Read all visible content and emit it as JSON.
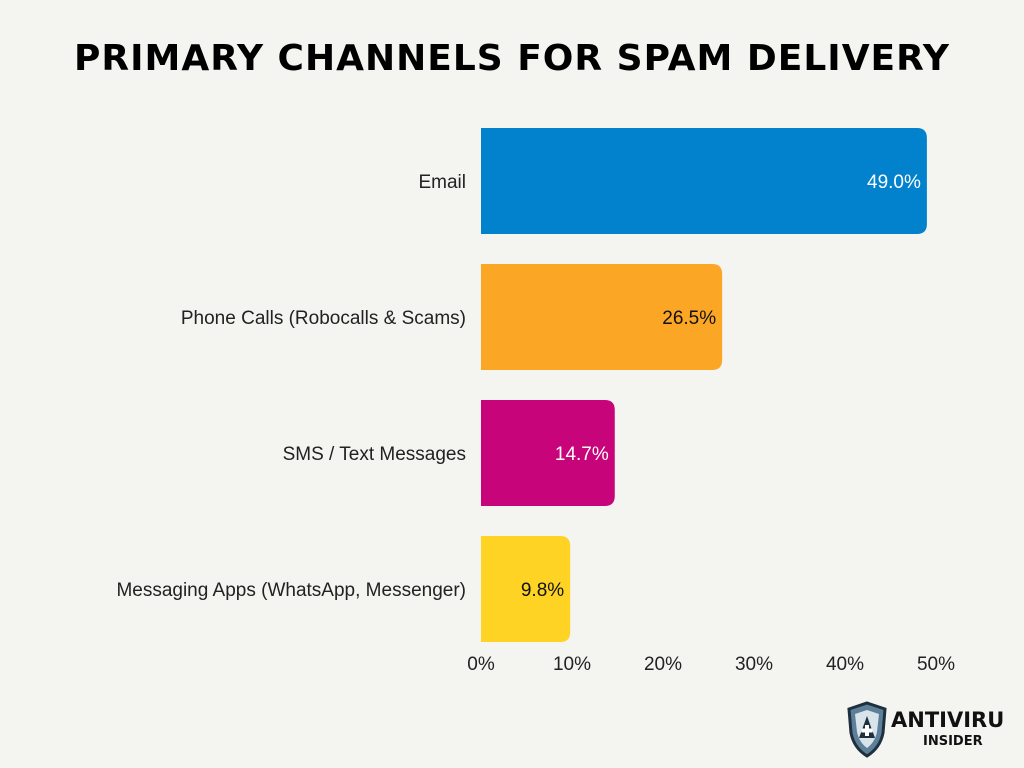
{
  "chart_data": {
    "type": "bar",
    "orientation": "horizontal",
    "title": "PRIMARY CHANNELS FOR SPAM DELIVERY",
    "categories": [
      "Email",
      "Phone Calls (Robocalls & Scams)",
      "SMS / Text Messages",
      "Messaging Apps (WhatsApp, Messenger)"
    ],
    "values": [
      49.0,
      26.5,
      14.7,
      9.8
    ],
    "value_labels": [
      "49.0%",
      "26.5%",
      "14.7%",
      "9.8%"
    ],
    "colors": [
      "#0282cc",
      "#fca626",
      "#c8047a",
      "#fed324"
    ],
    "label_colors": [
      "#ffffff",
      "#111111",
      "#ffffff",
      "#111111"
    ],
    "xlim": [
      0,
      50
    ],
    "xticks": [
      0,
      10,
      20,
      30,
      40,
      50
    ],
    "xtick_labels": [
      "0%",
      "10%",
      "20%",
      "30%",
      "40%",
      "50%"
    ],
    "grid": false,
    "legend": "none"
  },
  "logo": {
    "name": "ANTIVIRUS",
    "tagline": "INSIDER",
    "icon": "shield-plus-icon"
  }
}
